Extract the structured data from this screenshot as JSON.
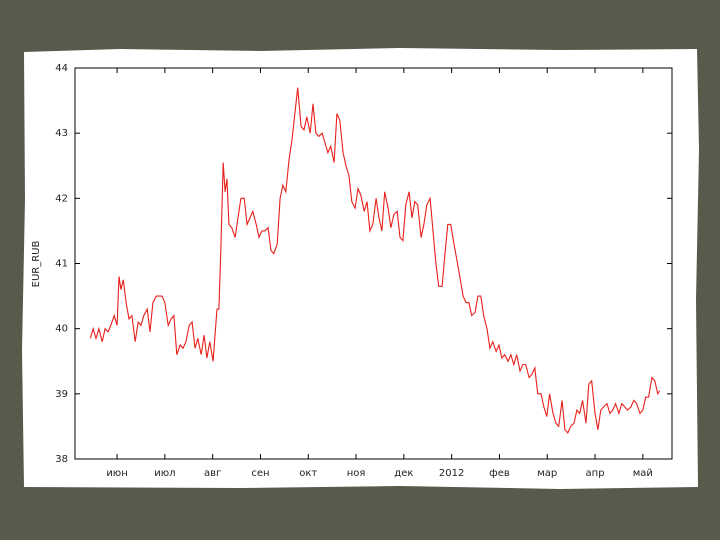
{
  "chart_data": {
    "type": "line",
    "ylabel": "EUR_RUB",
    "color": "#e8201c",
    "xlim": [
      -0.88,
      11.61
    ],
    "ylim": [
      38,
      44
    ],
    "yticks": [
      38,
      39,
      40,
      41,
      42,
      43,
      44
    ],
    "xticks": [
      {
        "value": 0,
        "label": "июн"
      },
      {
        "value": 1,
        "label": "июл"
      },
      {
        "value": 2,
        "label": "авг"
      },
      {
        "value": 3,
        "label": "сен"
      },
      {
        "value": 4,
        "label": "окт"
      },
      {
        "value": 5,
        "label": "ноя"
      },
      {
        "value": 6,
        "label": "дек"
      },
      {
        "value": 7,
        "label": "2012"
      },
      {
        "value": 8,
        "label": "фев"
      },
      {
        "value": 9,
        "label": "мар"
      },
      {
        "value": 10,
        "label": "апр"
      },
      {
        "value": 11,
        "label": "май"
      }
    ],
    "grid": false,
    "x": [
      -0.56,
      -0.5,
      -0.44,
      -0.38,
      -0.31,
      -0.25,
      -0.19,
      -0.13,
      -0.06,
      0,
      0.04,
      0.08,
      0.13,
      0.19,
      0.25,
      0.31,
      0.38,
      0.44,
      0.5,
      0.56,
      0.63,
      0.69,
      0.75,
      0.82,
      0.88,
      0.94,
      1,
      1.07,
      1.13,
      1.19,
      1.25,
      1.32,
      1.38,
      1.44,
      1.51,
      1.57,
      1.63,
      1.69,
      1.76,
      1.82,
      1.88,
      1.94,
      2.01,
      2.05,
      2.09,
      2.13,
      2.17,
      2.22,
      2.26,
      2.3,
      2.34,
      2.4,
      2.47,
      2.53,
      2.59,
      2.66,
      2.72,
      2.78,
      2.84,
      2.91,
      2.97,
      3.03,
      3.09,
      3.16,
      3.22,
      3.28,
      3.35,
      3.41,
      3.47,
      3.53,
      3.6,
      3.66,
      3.72,
      3.78,
      3.85,
      3.91,
      3.97,
      4.04,
      4.1,
      4.16,
      4.22,
      4.29,
      4.35,
      4.41,
      4.47,
      4.54,
      4.6,
      4.66,
      4.73,
      4.79,
      4.85,
      4.91,
      4.98,
      5.04,
      5.1,
      5.17,
      5.23,
      5.29,
      5.35,
      5.42,
      5.48,
      5.54,
      5.6,
      5.67,
      5.73,
      5.79,
      5.86,
      5.92,
      5.98,
      6.04,
      6.11,
      6.17,
      6.23,
      6.29,
      6.36,
      6.42,
      6.48,
      6.55,
      6.61,
      6.67,
      6.73,
      6.8,
      6.86,
      6.92,
      6.98,
      7.05,
      7.11,
      7.17,
      7.24,
      7.3,
      7.36,
      7.42,
      7.49,
      7.55,
      7.61,
      7.67,
      7.74,
      7.8,
      7.86,
      7.93,
      7.99,
      8.05,
      8.11,
      8.18,
      8.24,
      8.3,
      8.36,
      8.43,
      8.49,
      8.55,
      8.62,
      8.68,
      8.74,
      8.8,
      8.87,
      8.93,
      8.99,
      9.05,
      9.12,
      9.18,
      9.24,
      9.31,
      9.37,
      9.43,
      9.49,
      9.56,
      9.62,
      9.68,
      9.74,
      9.81,
      9.87,
      9.93,
      10,
      10.06,
      10.12,
      10.18,
      10.25,
      10.31,
      10.37,
      10.43,
      10.5,
      10.56,
      10.62,
      10.68,
      10.75,
      10.81,
      10.87,
      10.94,
      11,
      11.06,
      11.12,
      11.19,
      11.25,
      11.31,
      11.35
    ],
    "values": [
      39.85,
      40,
      39.85,
      40,
      39.8,
      40,
      39.95,
      40.05,
      40.2,
      40.05,
      40.8,
      40.6,
      40.75,
      40.4,
      40.15,
      40.2,
      39.8,
      40.1,
      40.05,
      40.2,
      40.3,
      39.95,
      40.4,
      40.5,
      40.5,
      40.5,
      40.4,
      40.05,
      40.15,
      40.2,
      39.6,
      39.75,
      39.7,
      39.8,
      40.05,
      40.1,
      39.7,
      39.85,
      39.6,
      39.9,
      39.55,
      39.8,
      39.5,
      39.9,
      40.3,
      40.3,
      41.2,
      42.55,
      42.1,
      42.3,
      41.6,
      41.55,
      41.4,
      41.7,
      42,
      42,
      41.6,
      41.7,
      41.8,
      41.6,
      41.4,
      41.5,
      41.5,
      41.55,
      41.2,
      41.15,
      41.3,
      42,
      42.2,
      42.1,
      42.6,
      42.9,
      43.3,
      43.7,
      43.1,
      43.05,
      43.25,
      43,
      43.45,
      43,
      42.95,
      43,
      42.85,
      42.7,
      42.8,
      42.55,
      43.3,
      43.2,
      42.7,
      42.5,
      42.35,
      41.95,
      41.85,
      42.15,
      42.05,
      41.8,
      41.95,
      41.5,
      41.6,
      42,
      41.7,
      41.5,
      42.1,
      41.85,
      41.55,
      41.75,
      41.8,
      41.4,
      41.35,
      41.9,
      42.1,
      41.7,
      41.95,
      41.9,
      41.4,
      41.6,
      41.9,
      42,
      41.5,
      41,
      40.65,
      40.65,
      41.15,
      41.6,
      41.6,
      41.3,
      41.05,
      40.8,
      40.5,
      40.4,
      40.4,
      40.2,
      40.25,
      40.5,
      40.5,
      40.2,
      40,
      39.7,
      39.8,
      39.65,
      39.75,
      39.55,
      39.6,
      39.5,
      39.6,
      39.45,
      39.6,
      39.35,
      39.45,
      39.45,
      39.25,
      39.3,
      39.4,
      39,
      39,
      38.8,
      38.65,
      39,
      38.7,
      38.55,
      38.5,
      38.9,
      38.45,
      38.4,
      38.5,
      38.55,
      38.75,
      38.7,
      38.9,
      38.55,
      39.15,
      39.2,
      38.7,
      38.45,
      38.75,
      38.8,
      38.85,
      38.7,
      38.75,
      38.85,
      38.7,
      38.85,
      38.8,
      38.75,
      38.8,
      38.9,
      38.85,
      38.7,
      38.75,
      38.95,
      38.95,
      39.25,
      39.2,
      39,
      39.05
    ]
  }
}
